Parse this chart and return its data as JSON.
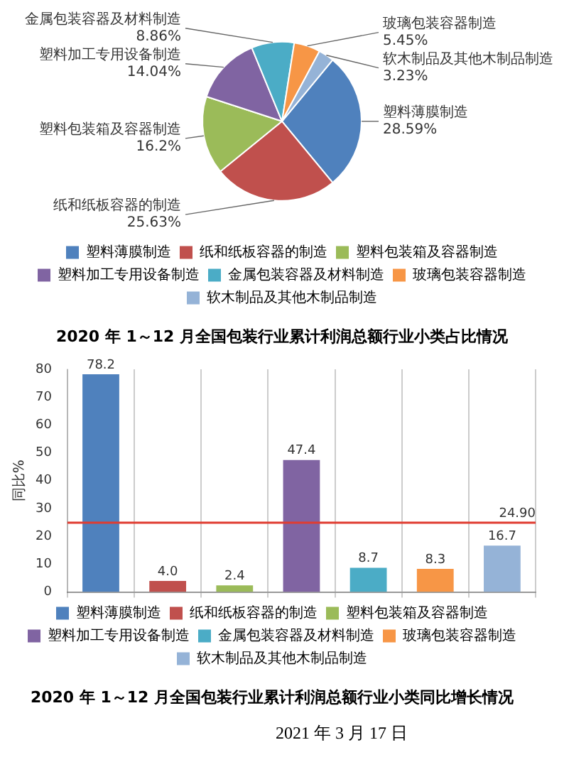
{
  "chart_data": [
    {
      "type": "pie",
      "title": "2020 年 1～12 月全国包装行业累计利润总额行业小类占比情况",
      "categories": [
        "塑料薄膜制造",
        "纸和纸板容器的制造",
        "塑料包装箱及容器制造",
        "塑料加工专用设备制造",
        "金属包装容器及材料制造",
        "玻璃包装容器制造",
        "软木制品及其他木制品制造"
      ],
      "values": [
        28.59,
        25.63,
        16.2,
        14.04,
        8.86,
        5.45,
        3.23
      ],
      "value_labels": [
        "28.59%",
        "25.63%",
        "16.2%",
        "14.04%",
        "8.86%",
        "5.45%",
        "3.23%"
      ],
      "colors": [
        "#4f81bd",
        "#c0504d",
        "#9bbb59",
        "#8064a2",
        "#4bacc6",
        "#f79646",
        "#95b3d7"
      ],
      "legend": "bottom"
    },
    {
      "type": "bar",
      "title": "2020 年 1～12 月全国包装行业累计利润总额行业小类同比增长情况",
      "ylabel": "同比%",
      "categories": [
        null,
        null,
        null,
        null,
        null,
        null,
        null
      ],
      "series": [
        {
          "name": "塑料薄膜制造",
          "color": "#4f81bd",
          "values": [
            78.2,
            null,
            null,
            null,
            null,
            null,
            null
          ],
          "value_labels": [
            "78.2",
            null,
            null,
            null,
            null,
            null,
            null
          ]
        },
        {
          "name": "纸和纸板容器的制造",
          "color": "#c0504d",
          "values": [
            null,
            4.0,
            null,
            null,
            null,
            null,
            null
          ],
          "value_labels": [
            null,
            "4.0",
            null,
            null,
            null,
            null,
            null
          ]
        },
        {
          "name": "塑料包装箱及容器制造",
          "color": "#9bbb59",
          "values": [
            null,
            null,
            2.4,
            null,
            null,
            null,
            null
          ],
          "value_labels": [
            null,
            null,
            "2.4",
            null,
            null,
            null,
            null
          ]
        },
        {
          "name": "塑料加工专用设备制造",
          "color": "#8064a2",
          "values": [
            null,
            null,
            null,
            47.4,
            null,
            null,
            null
          ],
          "value_labels": [
            null,
            null,
            null,
            "47.4",
            null,
            null,
            null
          ]
        },
        {
          "name": "金属包装容器及材料制造",
          "color": "#4bacc6",
          "values": [
            null,
            null,
            null,
            null,
            8.7,
            null,
            null
          ],
          "value_labels": [
            null,
            null,
            null,
            null,
            "8.7",
            null,
            null
          ]
        },
        {
          "name": "玻璃包装容器制造",
          "color": "#f79646",
          "values": [
            null,
            null,
            null,
            null,
            null,
            8.3,
            null
          ],
          "value_labels": [
            null,
            null,
            null,
            null,
            null,
            "8.3",
            null
          ]
        },
        {
          "name": "软木制品及其他木制品制造",
          "color": "#95b3d7",
          "values": [
            null,
            null,
            null,
            null,
            null,
            null,
            16.7
          ],
          "value_labels": [
            null,
            null,
            null,
            null,
            null,
            null,
            "16.7"
          ]
        }
      ],
      "ylim": [
        0,
        80
      ],
      "yticks": [
        0,
        10,
        20,
        30,
        40,
        50,
        60,
        70,
        80
      ],
      "ref_lines": [
        {
          "axis": "y",
          "value": 24.9,
          "label": "24.90",
          "color": "#e03c31"
        }
      ],
      "grid": "x",
      "legend": "bottom",
      "tick_labels": "y",
      "annotations": [
        "2021 年 3 月 17 日"
      ]
    }
  ]
}
